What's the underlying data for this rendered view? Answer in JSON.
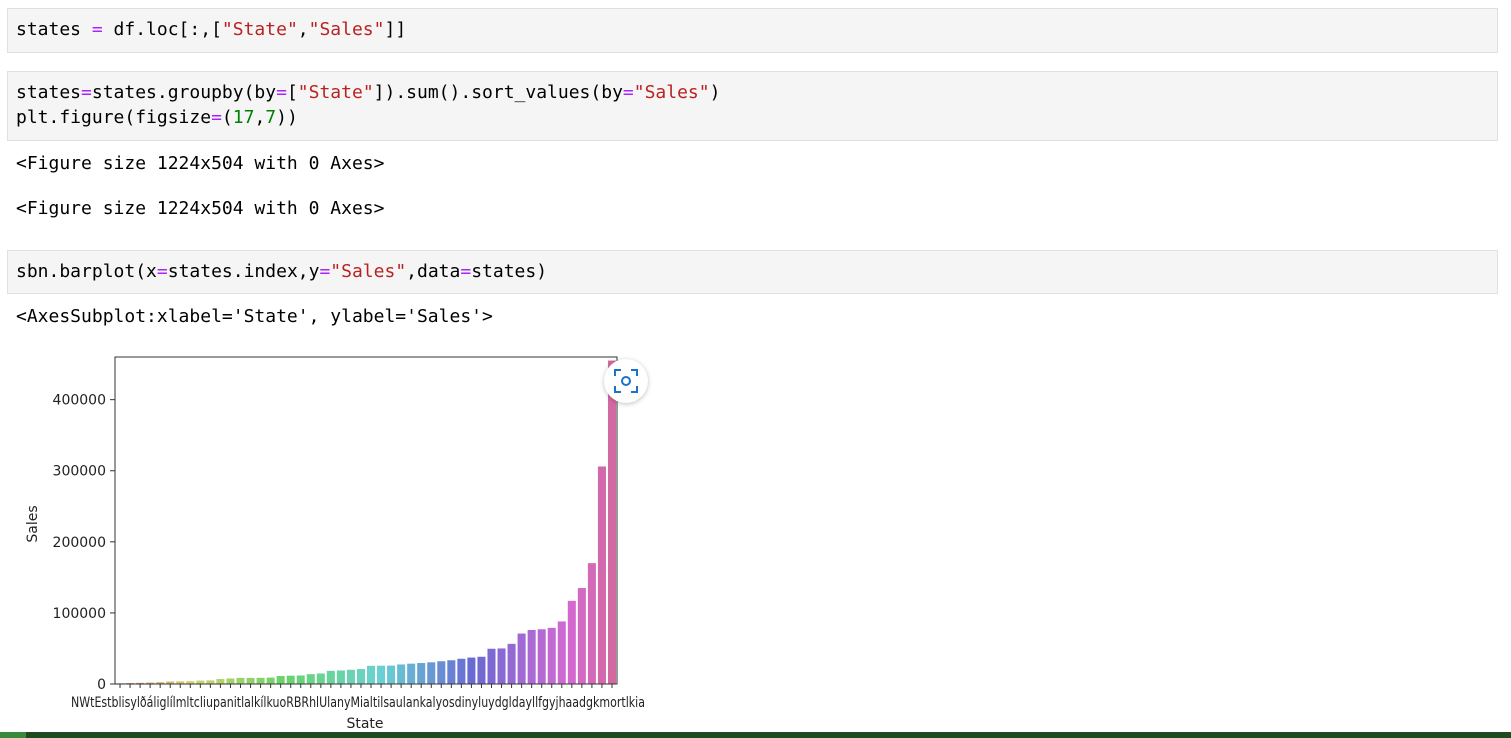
{
  "cells": [
    {
      "lines": [
        [
          {
            "t": "states ",
            "c": ""
          },
          {
            "t": "=",
            "c": "kw-op"
          },
          {
            "t": " df.loc[:,[",
            "c": ""
          },
          {
            "t": "\"State\"",
            "c": "str"
          },
          {
            "t": ",",
            "c": ""
          },
          {
            "t": "\"Sales\"",
            "c": "str"
          },
          {
            "t": "]]",
            "c": ""
          }
        ]
      ]
    },
    {
      "lines": [
        [
          {
            "t": "states",
            "c": ""
          },
          {
            "t": "=",
            "c": "kw-op"
          },
          {
            "t": "states.groupby(by",
            "c": ""
          },
          {
            "t": "=",
            "c": "kw-op"
          },
          {
            "t": "[",
            "c": ""
          },
          {
            "t": "\"State\"",
            "c": "str"
          },
          {
            "t": "]).sum().sort_values(by",
            "c": ""
          },
          {
            "t": "=",
            "c": "kw-op"
          },
          {
            "t": "\"Sales\"",
            "c": "str"
          },
          {
            "t": ")",
            "c": ""
          }
        ],
        [
          {
            "t": "plt.figure(figsize",
            "c": ""
          },
          {
            "t": "=",
            "c": "kw-op"
          },
          {
            "t": "(",
            "c": ""
          },
          {
            "t": "17",
            "c": "num"
          },
          {
            "t": ",",
            "c": ""
          },
          {
            "t": "7",
            "c": "num"
          },
          {
            "t": "))",
            "c": ""
          }
        ]
      ]
    },
    {
      "lines": [
        [
          {
            "t": "sbn.barplot(x",
            "c": ""
          },
          {
            "t": "=",
            "c": "kw-op"
          },
          {
            "t": "states.index,y",
            "c": ""
          },
          {
            "t": "=",
            "c": "kw-op"
          },
          {
            "t": "\"Sales\"",
            "c": "str"
          },
          {
            "t": ",data",
            "c": ""
          },
          {
            "t": "=",
            "c": "kw-op"
          },
          {
            "t": "states)",
            "c": ""
          }
        ]
      ]
    }
  ],
  "outputs": {
    "figure_1": "<Figure size 1224x504 with 0 Axes>",
    "figure_2": "<Figure size 1224x504 with 0 Axes>",
    "axes": "<AxesSubplot:xlabel='State', ylabel='Sales'>"
  },
  "chart_data": {
    "type": "bar",
    "xlabel": "State",
    "ylabel": "Sales",
    "ylim": [
      0,
      460000
    ],
    "yticks": [
      0,
      100000,
      200000,
      300000,
      400000
    ],
    "x_tick_text": "NWtEstblisylðáliglílmltcliupanitlalkílkuoRBRhlUlanyMialtilsaulankalyosdinyluydgldayllfgyjhaadgkmortlkia",
    "values": [
      900,
      1300,
      1600,
      2000,
      2500,
      3500,
      3700,
      4000,
      4800,
      5100,
      7000,
      7800,
      8600,
      8600,
      8700,
      9000,
      11300,
      11700,
      12000,
      13800,
      14800,
      18500,
      19000,
      20000,
      21000,
      25600,
      25800,
      25900,
      27500,
      28600,
      29500,
      30500,
      32000,
      33400,
      35500,
      37200,
      38300,
      49600,
      50000,
      56500,
      71000,
      76000,
      77000,
      79000,
      88000,
      117000,
      135000,
      170000,
      306000,
      455000
    ]
  },
  "icons": {
    "screenshot": "screenshot-icon"
  }
}
